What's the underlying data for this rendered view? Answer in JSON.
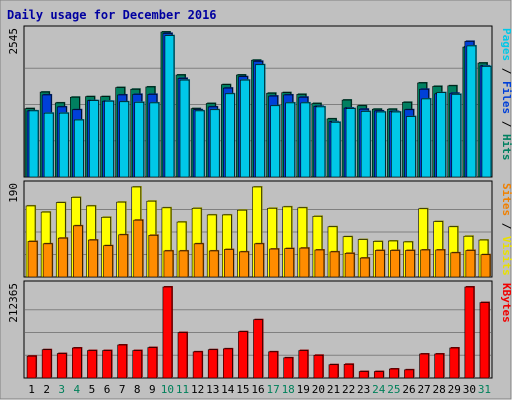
{
  "chart_data": {
    "type": "bar",
    "title": "Daily usage for December 2016",
    "categories": [
      "1",
      "2",
      "3",
      "4",
      "5",
      "6",
      "7",
      "8",
      "9",
      "10",
      "11",
      "12",
      "13",
      "14",
      "15",
      "16",
      "17",
      "18",
      "19",
      "20",
      "21",
      "22",
      "23",
      "24",
      "25",
      "26",
      "27",
      "28",
      "29",
      "30",
      "31"
    ],
    "weekend_days": [
      "3",
      "4",
      "10",
      "11",
      "17",
      "18",
      "24",
      "25",
      "31"
    ],
    "panels": [
      {
        "id": "hits-files-pages",
        "max_label": "2545",
        "ylim": [
          0,
          2545
        ],
        "grid": true,
        "legend": [
          {
            "text": "Pages",
            "color": "#00c8e8"
          },
          {
            "text": " / ",
            "color": "#000000"
          },
          {
            "text": "Files",
            "color": "#0040d8"
          },
          {
            "text": " / ",
            "color": "#000000"
          },
          {
            "text": "Hits",
            "color": "#008060"
          }
        ],
        "series": [
          {
            "name": "Hits",
            "color": "#008060",
            "values": [
              1200,
              1490,
              1300,
              1400,
              1410,
              1410,
              1570,
              1540,
              1580,
              2545,
              1790,
              1200,
              1290,
              1620,
              1790,
              2050,
              1470,
              1480,
              1450,
              1290,
              1020,
              1350,
              1250,
              1190,
              1190,
              1310,
              1650,
              1590,
              1600,
              2280,
              2000
            ]
          },
          {
            "name": "Files",
            "color": "#0040d8",
            "values": [
              1160,
              1440,
              1230,
              1180,
              1340,
              1330,
              1440,
              1450,
              1450,
              2520,
              1730,
              1180,
              1230,
              1560,
              1760,
              2030,
              1420,
              1440,
              1400,
              1240,
              970,
              1210,
              1190,
              1160,
              1150,
              1180,
              1540,
              1460,
              1470,
              2380,
              1950
            ]
          },
          {
            "name": "Pages",
            "color": "#00c8e8",
            "values": [
              1160,
              1120,
              1120,
              1000,
              1340,
              1330,
              1320,
              1310,
              1300,
              2480,
              1700,
              1160,
              1180,
              1460,
              1700,
              1970,
              1250,
              1300,
              1300,
              1230,
              960,
              1200,
              1150,
              1140,
              1140,
              1060,
              1370,
              1480,
              1450,
              2300,
              1940
            ]
          }
        ]
      },
      {
        "id": "visits-sites",
        "max_label": "190",
        "ylim": [
          0,
          190
        ],
        "grid": true,
        "legend": [
          {
            "text": "Sites",
            "color": "#f08000"
          },
          {
            "text": " / ",
            "color": "#000000"
          },
          {
            "text": "Visits",
            "color": "#e8e000"
          }
        ],
        "series": [
          {
            "name": "Visits",
            "color": "#ffff00",
            "values": [
              150,
              137,
              157,
              168,
              150,
              126,
              158,
              190,
              160,
              146,
              116,
              145,
              131,
              131,
              141,
              190,
              145,
              148,
              146,
              128,
              106,
              85,
              79,
              75,
              76,
              74,
              144,
              117,
              106,
              86,
              78
            ]
          },
          {
            "name": "Sites",
            "color": "#ff8c00",
            "values": [
              75,
              70,
              82,
              108,
              78,
              66,
              89,
              120,
              88,
              55,
              55,
              70,
              55,
              58,
              53,
              70,
              59,
              60,
              61,
              57,
              53,
              50,
              40,
              56,
              56,
              56,
              57,
              57,
              51,
              56,
              47
            ]
          }
        ]
      },
      {
        "id": "kbytes",
        "max_label": "212365",
        "ylim": [
          0,
          212365
        ],
        "grid": true,
        "legend": [
          {
            "text": "KBytes",
            "color": "#f00000"
          }
        ],
        "series": [
          {
            "name": "KBytes",
            "color": "#ff0000",
            "values": [
              51000,
              66000,
              57000,
              70000,
              64000,
              64000,
              77000,
              64000,
              71000,
              212365,
              106000,
              61000,
              66000,
              68000,
              108000,
              136000,
              61000,
              47000,
              64000,
              53000,
              31000,
              32000,
              15000,
              15000,
              21000,
              19000,
              56000,
              56000,
              70000,
              212365,
              176000
            ]
          }
        ]
      }
    ]
  }
}
